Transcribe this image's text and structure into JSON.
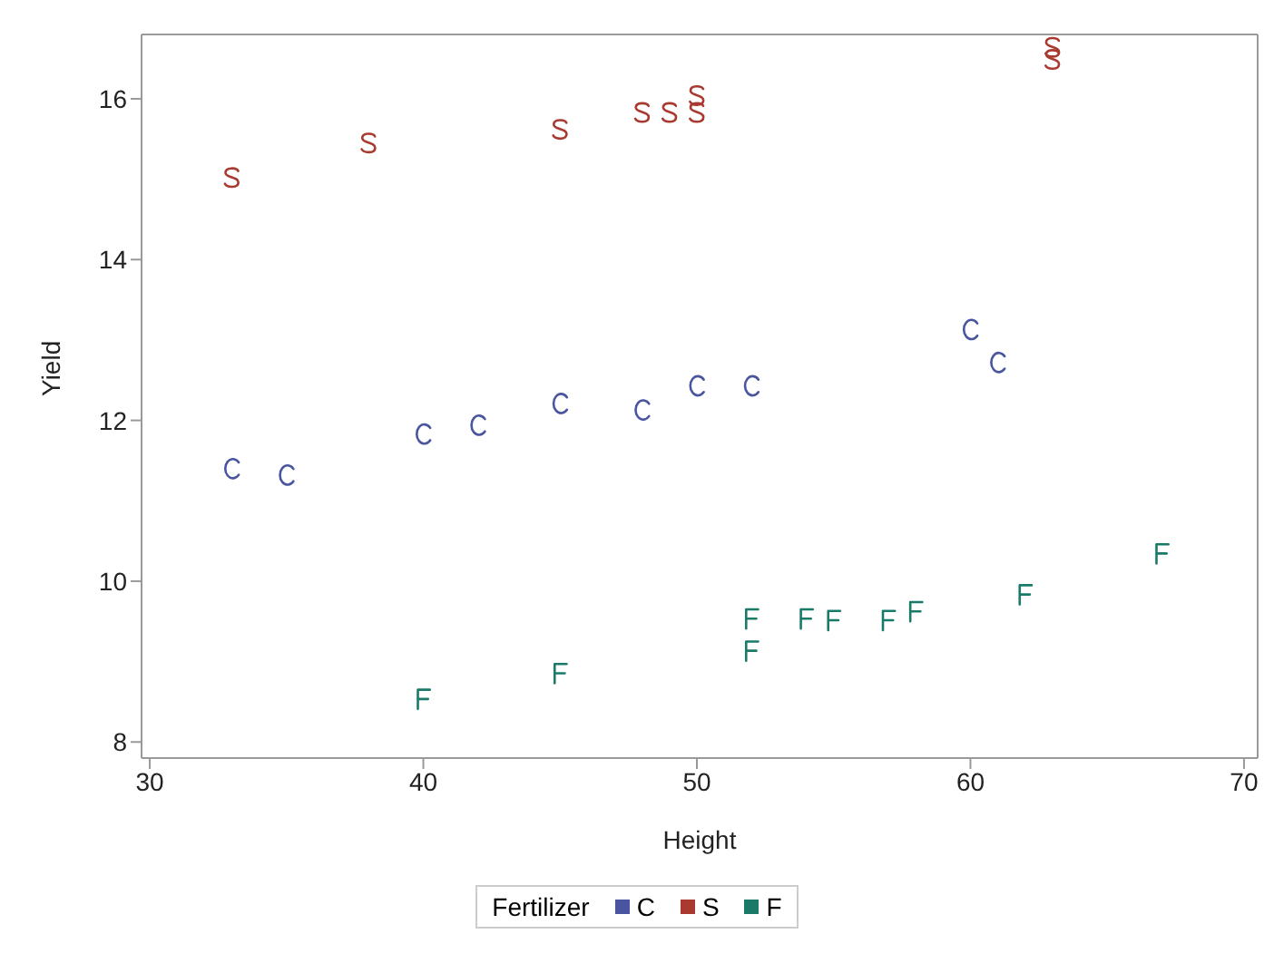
{
  "chart_data": {
    "type": "scatter",
    "xlabel": "Height",
    "ylabel": "Yield",
    "legend_title": "Fertilizer",
    "legend": "bottom",
    "grid": false,
    "xlim": [
      29.7,
      70.5
    ],
    "ylim": [
      7.8,
      16.8
    ],
    "xticks": [
      30,
      40,
      50,
      60,
      70
    ],
    "yticks": [
      8,
      10,
      12,
      14,
      16
    ],
    "series": [
      {
        "name": "C",
        "color": "#4a55a0",
        "x": [
          33,
          35,
          40,
          42,
          45,
          48,
          50,
          52,
          60,
          61
        ],
        "values": [
          11.4,
          11.32,
          11.83,
          11.94,
          12.21,
          12.13,
          12.43,
          12.43,
          13.13,
          12.72
        ]
      },
      {
        "name": "S",
        "color": "#a83a30",
        "x": [
          33,
          38,
          45,
          48,
          49,
          50,
          50,
          63,
          63
        ],
        "values": [
          15.02,
          15.45,
          15.62,
          15.83,
          15.83,
          15.83,
          16.04,
          16.64,
          16.49
        ]
      },
      {
        "name": "F",
        "color": "#1a7a6a",
        "x": [
          40,
          45,
          52,
          52,
          54,
          55,
          57,
          58,
          62,
          67
        ],
        "values": [
          8.53,
          8.85,
          9.53,
          9.13,
          9.53,
          9.51,
          9.51,
          9.62,
          9.83,
          10.34
        ]
      }
    ]
  }
}
